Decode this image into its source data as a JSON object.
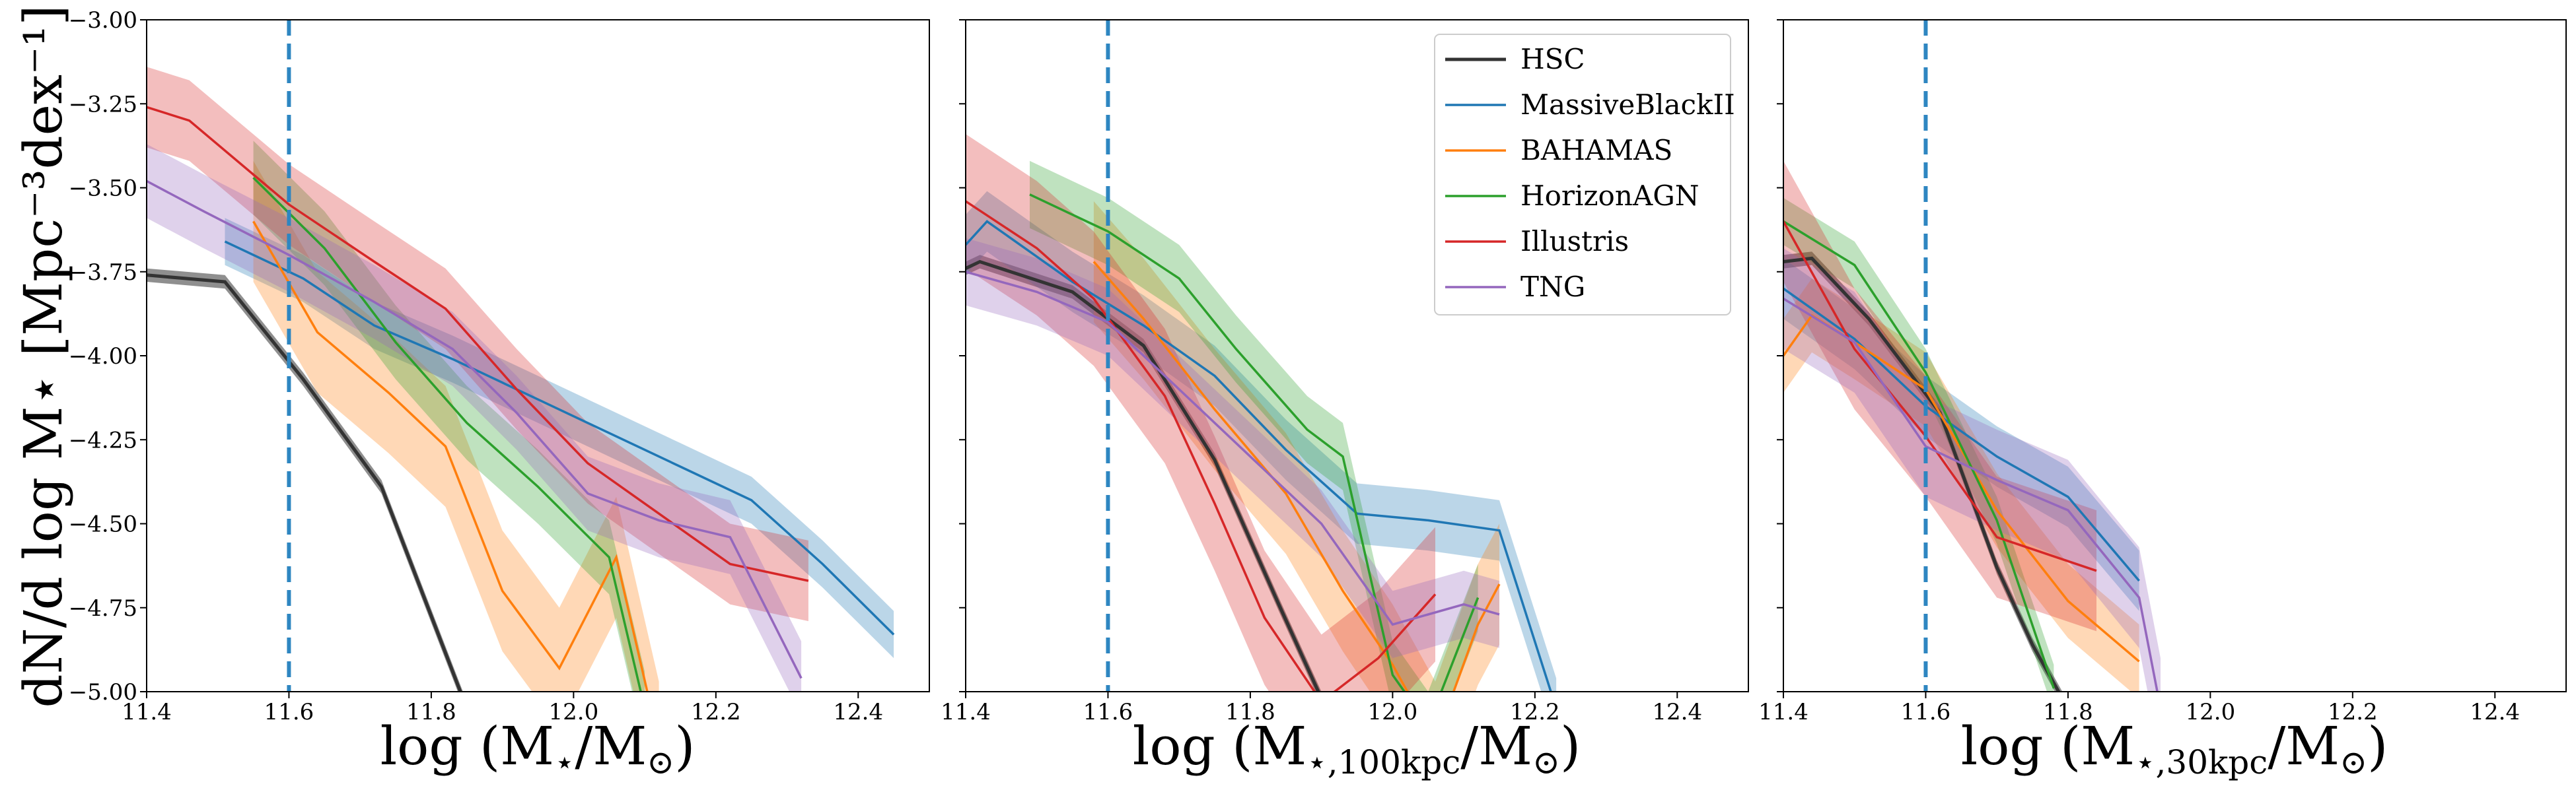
{
  "chart_data": {
    "type": "line",
    "ylabel": "dN/d log M⋆ [Mpc⁻³dex⁻¹]",
    "ylim": [
      -5.0,
      -3.0
    ],
    "yticks": [
      -5.0,
      -4.75,
      -4.5,
      -4.25,
      -4.0,
      -3.75,
      -3.5,
      -3.25,
      -3.0
    ],
    "ytick_labels": [
      "−5.00",
      "−4.75",
      "−4.50",
      "−4.25",
      "−4.00",
      "−3.75",
      "−3.50",
      "−3.25",
      "−3.00"
    ],
    "xlim": [
      11.4,
      12.5
    ],
    "xticks": [
      11.4,
      11.6,
      11.8,
      12.0,
      12.2,
      12.4
    ],
    "xtick_labels": [
      "11.4",
      "11.6",
      "11.8",
      "12.0",
      "12.2",
      "12.4"
    ],
    "cutoff_line": 11.6,
    "legend_placement": "top-right of middle panel",
    "colors": {
      "HSC": "#333333",
      "MassiveBlackII": "#1f77b4",
      "BAHAMAS": "#ff7f0e",
      "HorizonAGN": "#2ca02c",
      "Illustris": "#d62728",
      "TNG": "#9467bd",
      "cutoff": "#2e86c1"
    },
    "legend": [
      "HSC",
      "MassiveBlackII",
      "BAHAMAS",
      "HorizonAGN",
      "Illustris",
      "TNG"
    ],
    "panels": [
      {
        "xlabel_main": "log (M",
        "xlabel_sub": "⋆",
        "xlabel_tail": "/M",
        "xlabel_sun": "⊙",
        "xlabel_close": ")",
        "series": [
          {
            "name": "HSC",
            "x": [
              11.4,
              11.51,
              11.62,
              11.73,
              11.85
            ],
            "y": [
              -3.76,
              -3.78,
              -4.07,
              -4.39,
              -5.05
            ],
            "width": 0.02
          },
          {
            "name": "MassiveBlackII",
            "x": [
              11.51,
              11.62,
              11.72,
              11.83,
              11.95,
              12.05,
              12.15,
              12.25,
              12.35,
              12.45
            ],
            "y": [
              -3.66,
              -3.77,
              -3.91,
              -4.01,
              -4.13,
              -4.23,
              -4.33,
              -4.43,
              -4.62,
              -4.83
            ],
            "width": 0.07
          },
          {
            "name": "BAHAMAS",
            "x": [
              11.55,
              11.64,
              11.74,
              11.82,
              11.9,
              11.98,
              12.06,
              12.12
            ],
            "y": [
              -3.6,
              -3.93,
              -4.11,
              -4.27,
              -4.7,
              -4.93,
              -4.6,
              -5.15
            ],
            "width": 0.18
          },
          {
            "name": "HorizonAGN",
            "x": [
              11.55,
              11.65,
              11.75,
              11.85,
              11.95,
              12.05,
              12.1
            ],
            "y": [
              -3.47,
              -3.68,
              -3.96,
              -4.2,
              -4.39,
              -4.6,
              -5.05
            ],
            "width": 0.11
          },
          {
            "name": "Illustris",
            "x": [
              11.4,
              11.46,
              11.6,
              11.72,
              11.82,
              11.92,
              12.02,
              12.12,
              12.22,
              12.33
            ],
            "y": [
              -3.26,
              -3.3,
              -3.55,
              -3.72,
              -3.86,
              -4.1,
              -4.32,
              -4.47,
              -4.62,
              -4.67
            ],
            "width": 0.12
          },
          {
            "name": "TNG",
            "x": [
              11.4,
              11.48,
              11.6,
              11.72,
              11.83,
              11.92,
              12.02,
              12.12,
              12.22,
              12.32
            ],
            "y": [
              -3.48,
              -3.57,
              -3.7,
              -3.84,
              -3.98,
              -4.17,
              -4.41,
              -4.49,
              -4.54,
              -4.96
            ],
            "width": 0.11
          }
        ]
      },
      {
        "xlabel_main": "log (M",
        "xlabel_sub": "⋆,100kpc",
        "xlabel_tail": "/M",
        "xlabel_sun": "⊙",
        "xlabel_close": ")",
        "series": [
          {
            "name": "HSC",
            "x": [
              11.4,
              11.42,
              11.55,
              11.65,
              11.75,
              11.84,
              11.9
            ],
            "y": [
              -3.74,
              -3.72,
              -3.81,
              -3.97,
              -4.31,
              -4.74,
              -5.02
            ],
            "width": 0.02
          },
          {
            "name": "MassiveBlackII",
            "x": [
              11.4,
              11.43,
              11.55,
              11.65,
              11.75,
              11.85,
              11.95,
              12.05,
              12.15,
              12.23
            ],
            "y": [
              -3.67,
              -3.6,
              -3.78,
              -3.91,
              -4.06,
              -4.28,
              -4.47,
              -4.49,
              -4.52,
              -5.05
            ],
            "width": 0.09
          },
          {
            "name": "BAHAMAS",
            "x": [
              11.58,
              11.65,
              11.75,
              11.85,
              11.93,
              12.0,
              12.06,
              12.12,
              12.15
            ],
            "y": [
              -3.72,
              -3.89,
              -4.16,
              -4.41,
              -4.7,
              -4.92,
              -5.15,
              -4.8,
              -4.68
            ],
            "width": 0.18
          },
          {
            "name": "HorizonAGN",
            "x": [
              11.49,
              11.6,
              11.7,
              11.78,
              11.88,
              11.93,
              12.0,
              12.05,
              12.12
            ],
            "y": [
              -3.52,
              -3.63,
              -3.77,
              -3.98,
              -4.22,
              -4.3,
              -4.95,
              -5.1,
              -4.72
            ],
            "width": 0.1
          },
          {
            "name": "Illustris",
            "x": [
              11.4,
              11.5,
              11.58,
              11.68,
              11.75,
              11.82,
              11.9,
              11.98,
              12.06
            ],
            "y": [
              -3.54,
              -3.68,
              -3.83,
              -4.12,
              -4.44,
              -4.78,
              -5.03,
              -4.9,
              -4.71
            ],
            "width": 0.2
          },
          {
            "name": "TNG",
            "x": [
              11.4,
              11.5,
              11.6,
              11.7,
              11.8,
              11.9,
              12.0,
              12.1,
              12.15
            ],
            "y": [
              -3.75,
              -3.81,
              -3.9,
              -4.1,
              -4.3,
              -4.5,
              -4.8,
              -4.74,
              -4.77
            ],
            "width": 0.1
          }
        ]
      },
      {
        "xlabel_main": "log (M",
        "xlabel_sub": "⋆,30kpc",
        "xlabel_tail": "/M",
        "xlabel_sun": "⊙",
        "xlabel_close": ")",
        "series": [
          {
            "name": "HSC",
            "x": [
              11.4,
              11.44,
              11.52,
              11.62,
              11.7,
              11.75,
              11.8
            ],
            "y": [
              -3.72,
              -3.71,
              -3.89,
              -4.17,
              -4.63,
              -4.86,
              -5.05
            ],
            "width": 0.02
          },
          {
            "name": "MassiveBlackII",
            "x": [
              11.4,
              11.5,
              11.6,
              11.7,
              11.8,
              11.9
            ],
            "y": [
              -3.8,
              -3.95,
              -4.15,
              -4.3,
              -4.42,
              -4.67
            ],
            "width": 0.09
          },
          {
            "name": "BAHAMAS",
            "x": [
              11.4,
              11.44,
              11.5,
              11.6,
              11.7,
              11.8,
              11.9
            ],
            "y": [
              -4.0,
              -3.88,
              -3.96,
              -4.1,
              -4.46,
              -4.73,
              -4.91
            ],
            "width": 0.11
          },
          {
            "name": "HorizonAGN",
            "x": [
              11.4,
              11.5,
              11.6,
              11.7,
              11.78
            ],
            "y": [
              -3.6,
              -3.73,
              -4.05,
              -4.49,
              -4.99
            ],
            "width": 0.07
          },
          {
            "name": "Illustris",
            "x": [
              11.4,
              11.5,
              11.6,
              11.7,
              11.84
            ],
            "y": [
              -3.6,
              -3.98,
              -4.24,
              -4.54,
              -4.64
            ],
            "width": 0.18
          },
          {
            "name": "TNG",
            "x": [
              11.4,
              11.5,
              11.6,
              11.7,
              11.8,
              11.9,
              11.93
            ],
            "y": [
              -3.83,
              -3.96,
              -4.27,
              -4.37,
              -4.46,
              -4.72,
              -5.05
            ],
            "width": 0.15
          }
        ]
      }
    ]
  }
}
